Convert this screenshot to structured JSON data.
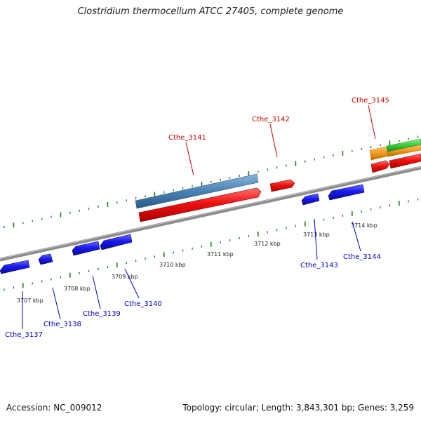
{
  "title": "Clostridium thermocellum ATCC 27405, complete genome",
  "footer": {
    "accession": "Accession: NC_009012",
    "topology": "Topology: circular; Length: 3,843,301 bp; Genes: 3,259"
  },
  "colors": {
    "backbone": "#8c8c8c",
    "forward_gene": "#ee1111",
    "reverse_gene": "#1a1aee",
    "forward_label": "#cc0000",
    "reverse_label": "#0000cc",
    "feature_steelblue": "#4a82b4",
    "feature_orange": "#f39a1e",
    "feature_green": "#3ccc3c",
    "tick": "#1c7a1c"
  },
  "kbp_labels": [
    "3707 kbp",
    "3708 kbp",
    "3709 kbp",
    "3710 kbp",
    "3711 kbp",
    "3712 kbp",
    "3713 kbp",
    "3714 kbp"
  ],
  "forward_labels": [
    "Cthe_3141",
    "Cthe_3142",
    "Cthe_3145"
  ],
  "reverse_labels": [
    "Cthe_3137",
    "Cthe_3138",
    "Cthe_3139",
    "Cthe_3140",
    "Cthe_3143",
    "Cthe_3144"
  ]
}
